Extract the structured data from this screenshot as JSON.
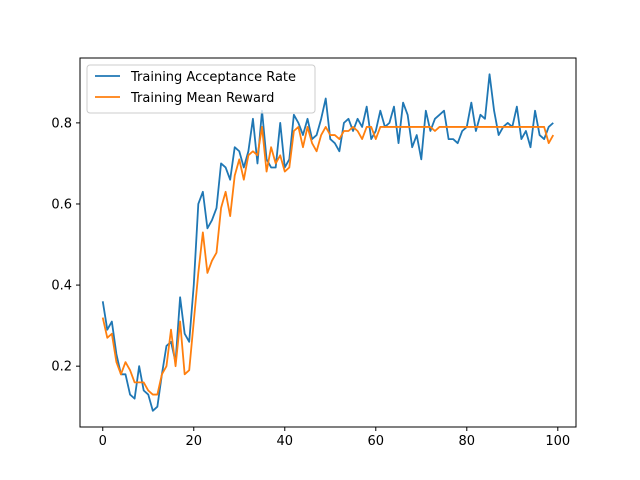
{
  "chart_data": {
    "type": "line",
    "title": "",
    "xlabel": "",
    "ylabel": "",
    "xlim": [
      -5,
      104
    ],
    "ylim": [
      0.05,
      0.96
    ],
    "xticks": [
      0,
      20,
      40,
      60,
      80,
      100
    ],
    "yticks": [
      0.2,
      0.4,
      0.6,
      0.8
    ],
    "grid": false,
    "legend_position": "upper-left",
    "series": [
      {
        "name": "Training Acceptance Rate",
        "color": "#1f77b4",
        "x": [
          0,
          1,
          2,
          3,
          4,
          5,
          6,
          7,
          8,
          9,
          10,
          11,
          12,
          13,
          14,
          15,
          16,
          17,
          18,
          19,
          20,
          21,
          22,
          23,
          24,
          25,
          26,
          27,
          28,
          29,
          30,
          31,
          32,
          33,
          34,
          35,
          36,
          37,
          38,
          39,
          40,
          41,
          42,
          43,
          44,
          45,
          46,
          47,
          48,
          49,
          50,
          51,
          52,
          53,
          54,
          55,
          56,
          57,
          58,
          59,
          60,
          61,
          62,
          63,
          64,
          65,
          66,
          67,
          68,
          69,
          70,
          71,
          72,
          73,
          74,
          75,
          76,
          77,
          78,
          79,
          80,
          81,
          82,
          83,
          84,
          85,
          86,
          87,
          88,
          89,
          90,
          91,
          92,
          93,
          94,
          95,
          96,
          97,
          98,
          99
        ],
        "values": [
          0.36,
          0.29,
          0.31,
          0.23,
          0.18,
          0.18,
          0.13,
          0.12,
          0.2,
          0.14,
          0.13,
          0.09,
          0.1,
          0.18,
          0.25,
          0.26,
          0.21,
          0.37,
          0.28,
          0.26,
          0.4,
          0.6,
          0.63,
          0.54,
          0.56,
          0.59,
          0.7,
          0.69,
          0.66,
          0.74,
          0.73,
          0.69,
          0.73,
          0.81,
          0.7,
          0.83,
          0.71,
          0.69,
          0.69,
          0.8,
          0.69,
          0.71,
          0.82,
          0.8,
          0.77,
          0.81,
          0.76,
          0.77,
          0.81,
          0.86,
          0.76,
          0.75,
          0.73,
          0.8,
          0.81,
          0.78,
          0.81,
          0.79,
          0.84,
          0.76,
          0.78,
          0.83,
          0.79,
          0.8,
          0.84,
          0.75,
          0.85,
          0.82,
          0.74,
          0.77,
          0.71,
          0.83,
          0.78,
          0.81,
          0.82,
          0.83,
          0.76,
          0.76,
          0.75,
          0.78,
          0.79,
          0.85,
          0.78,
          0.82,
          0.81,
          0.92,
          0.83,
          0.77,
          0.79,
          0.8,
          0.79,
          0.84,
          0.76,
          0.78,
          0.74,
          0.83,
          0.77,
          0.76,
          0.79,
          0.8
        ]
      },
      {
        "name": "Training Mean Reward",
        "color": "#ff7f0e",
        "x": [
          0,
          1,
          2,
          3,
          4,
          5,
          6,
          7,
          8,
          9,
          10,
          11,
          12,
          13,
          14,
          15,
          16,
          17,
          18,
          19,
          20,
          21,
          22,
          23,
          24,
          25,
          26,
          27,
          28,
          29,
          30,
          31,
          32,
          33,
          34,
          35,
          36,
          37,
          38,
          39,
          40,
          41,
          42,
          43,
          44,
          45,
          46,
          47,
          48,
          49,
          50,
          51,
          52,
          53,
          54,
          55,
          56,
          57,
          58,
          59,
          60,
          61,
          62,
          63,
          64,
          65,
          66,
          67,
          68,
          69,
          70,
          71,
          72,
          73,
          74,
          75,
          76,
          77,
          78,
          79,
          80,
          81,
          82,
          83,
          84,
          85,
          86,
          87,
          88,
          89,
          90,
          91,
          92,
          93,
          94,
          95,
          96,
          97,
          98,
          99
        ],
        "values": [
          0.32,
          0.27,
          0.28,
          0.21,
          0.18,
          0.21,
          0.19,
          0.16,
          0.16,
          0.16,
          0.14,
          0.13,
          0.13,
          0.18,
          0.2,
          0.29,
          0.2,
          0.31,
          0.18,
          0.19,
          0.31,
          0.43,
          0.53,
          0.43,
          0.46,
          0.48,
          0.59,
          0.63,
          0.57,
          0.67,
          0.71,
          0.66,
          0.72,
          0.73,
          0.72,
          0.79,
          0.68,
          0.74,
          0.7,
          0.72,
          0.68,
          0.69,
          0.78,
          0.79,
          0.74,
          0.79,
          0.75,
          0.73,
          0.77,
          0.79,
          0.77,
          0.77,
          0.76,
          0.78,
          0.78,
          0.79,
          0.78,
          0.76,
          0.79,
          0.79,
          0.76,
          0.79,
          0.79,
          0.79,
          0.79,
          0.79,
          0.79,
          0.79,
          0.79,
          0.79,
          0.79,
          0.79,
          0.79,
          0.78,
          0.79,
          0.79,
          0.79,
          0.79,
          0.79,
          0.79,
          0.79,
          0.79,
          0.79,
          0.79,
          0.79,
          0.79,
          0.79,
          0.79,
          0.79,
          0.79,
          0.79,
          0.79,
          0.79,
          0.79,
          0.79,
          0.79,
          0.79,
          0.79,
          0.75,
          0.77
        ]
      }
    ]
  }
}
